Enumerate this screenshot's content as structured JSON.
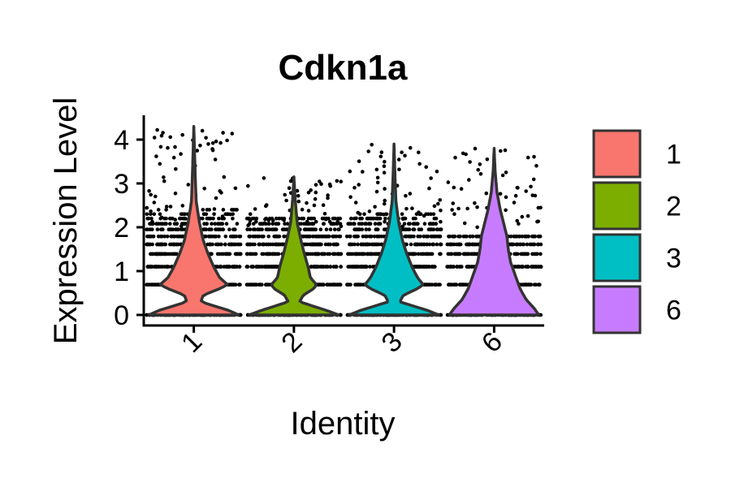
{
  "chart_data": {
    "type": "violin",
    "title": "Cdkn1a",
    "xlabel": "Identity",
    "ylabel": "Expression Level",
    "ylim": [
      -0.2,
      4.6
    ],
    "yticks": [
      0,
      1,
      2,
      3,
      4
    ],
    "grid": false,
    "legend_position": "right",
    "categories": [
      "1",
      "2",
      "3",
      "6"
    ],
    "series": [
      {
        "name": "1",
        "color": "#F8766D",
        "max": 4.3,
        "levels": [
          0,
          0.69,
          1.1,
          1.39,
          1.61,
          1.79,
          1.95,
          2.08,
          2.2,
          2.3,
          2.4
        ],
        "density_profile": [
          [
            0,
            0.95
          ],
          [
            0.1,
            0.75
          ],
          [
            0.3,
            0.15
          ],
          [
            0.45,
            0.2
          ],
          [
            0.6,
            0.55
          ],
          [
            0.69,
            0.72
          ],
          [
            0.85,
            0.55
          ],
          [
            1.1,
            0.42
          ],
          [
            1.4,
            0.3
          ],
          [
            1.7,
            0.2
          ],
          [
            2.1,
            0.12
          ],
          [
            2.6,
            0.05
          ],
          [
            3.2,
            0.03
          ],
          [
            4.3,
            0.0
          ]
        ]
      },
      {
        "name": "2",
        "color": "#7CAE00",
        "max": 3.15,
        "levels": [
          0,
          0.69,
          1.1,
          1.39,
          1.61,
          1.79,
          1.95,
          2.08,
          2.2
        ],
        "density_profile": [
          [
            0,
            0.95
          ],
          [
            0.1,
            0.7
          ],
          [
            0.3,
            0.12
          ],
          [
            0.45,
            0.2
          ],
          [
            0.6,
            0.42
          ],
          [
            0.69,
            0.48
          ],
          [
            0.85,
            0.35
          ],
          [
            1.1,
            0.3
          ],
          [
            1.4,
            0.22
          ],
          [
            1.7,
            0.15
          ],
          [
            2.1,
            0.07
          ],
          [
            2.6,
            0.03
          ],
          [
            3.15,
            0.0
          ]
        ]
      },
      {
        "name": "3",
        "color": "#00BFC4",
        "max": 3.9,
        "levels": [
          0,
          0.69,
          1.1,
          1.39,
          1.61,
          1.79,
          1.95,
          2.08,
          2.2,
          2.3
        ],
        "density_profile": [
          [
            0,
            0.95
          ],
          [
            0.1,
            0.72
          ],
          [
            0.3,
            0.12
          ],
          [
            0.45,
            0.2
          ],
          [
            0.6,
            0.5
          ],
          [
            0.69,
            0.62
          ],
          [
            0.85,
            0.5
          ],
          [
            1.1,
            0.38
          ],
          [
            1.4,
            0.27
          ],
          [
            1.7,
            0.18
          ],
          [
            2.1,
            0.1
          ],
          [
            2.6,
            0.04
          ],
          [
            3.2,
            0.02
          ],
          [
            3.9,
            0.0
          ]
        ]
      },
      {
        "name": "6",
        "color": "#C77CFF",
        "max": 3.8,
        "levels": [
          0,
          0.69,
          1.1,
          1.39,
          1.61,
          1.79
        ],
        "density_profile": [
          [
            0,
            0.95
          ],
          [
            0.15,
            0.85
          ],
          [
            0.35,
            0.68
          ],
          [
            0.6,
            0.55
          ],
          [
            0.9,
            0.45
          ],
          [
            1.2,
            0.35
          ],
          [
            1.5,
            0.3
          ],
          [
            1.8,
            0.27
          ],
          [
            2.1,
            0.2
          ],
          [
            2.4,
            0.13
          ],
          [
            2.8,
            0.06
          ],
          [
            3.3,
            0.02
          ],
          [
            3.8,
            0.0
          ]
        ]
      }
    ]
  }
}
